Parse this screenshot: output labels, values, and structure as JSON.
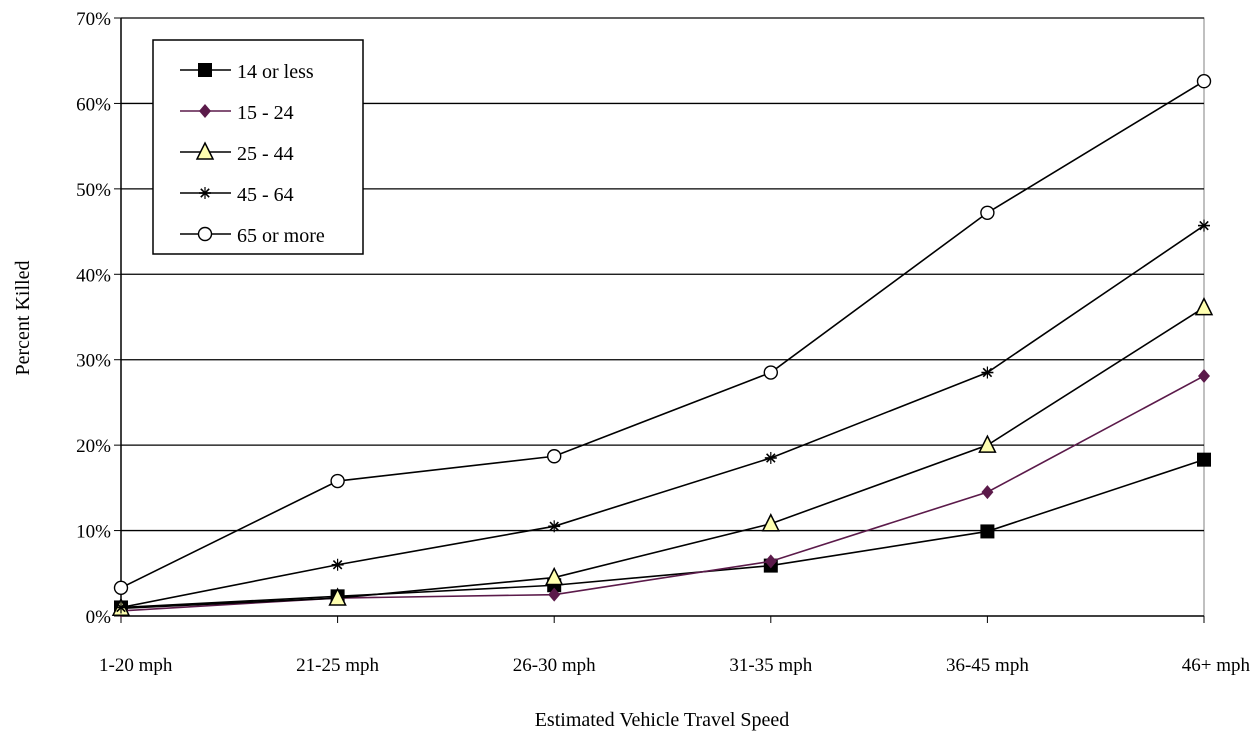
{
  "chart_data": {
    "type": "line",
    "categories": [
      "1-20 mph",
      "21-25 mph",
      "26-30 mph",
      "31-35 mph",
      "36-45 mph",
      "46+ mph"
    ],
    "xlabel": "Estimated Vehicle Travel Speed",
    "ylabel": "Percent Killed",
    "ylim": [
      0,
      70
    ],
    "yticks": [
      "0%",
      "10%",
      "20%",
      "30%",
      "40%",
      "50%",
      "60%",
      "70%"
    ],
    "grid": "horizontal",
    "legend_position": "top-left",
    "series": [
      {
        "name": "14 or less",
        "marker": "square-filled",
        "color": "#000000",
        "values": [
          1.0,
          2.3,
          3.6,
          5.9,
          9.9,
          18.3
        ]
      },
      {
        "name": "15 - 24",
        "marker": "diamond-filled",
        "color": "#5b1a4a",
        "values": [
          0.6,
          2.1,
          2.5,
          6.4,
          14.5,
          28.1
        ]
      },
      {
        "name": "25 - 44",
        "marker": "triangle-yellow",
        "color": "#000000",
        "values": [
          0.9,
          2.1,
          4.5,
          10.8,
          20.0,
          36.1
        ]
      },
      {
        "name": "45 - 64",
        "marker": "asterisk",
        "color": "#000000",
        "values": [
          1.0,
          6.0,
          10.5,
          18.5,
          28.5,
          45.7
        ]
      },
      {
        "name": "65 or more",
        "marker": "circle-open",
        "color": "#000000",
        "values": [
          3.3,
          15.8,
          18.7,
          28.5,
          47.2,
          62.6
        ]
      }
    ]
  }
}
